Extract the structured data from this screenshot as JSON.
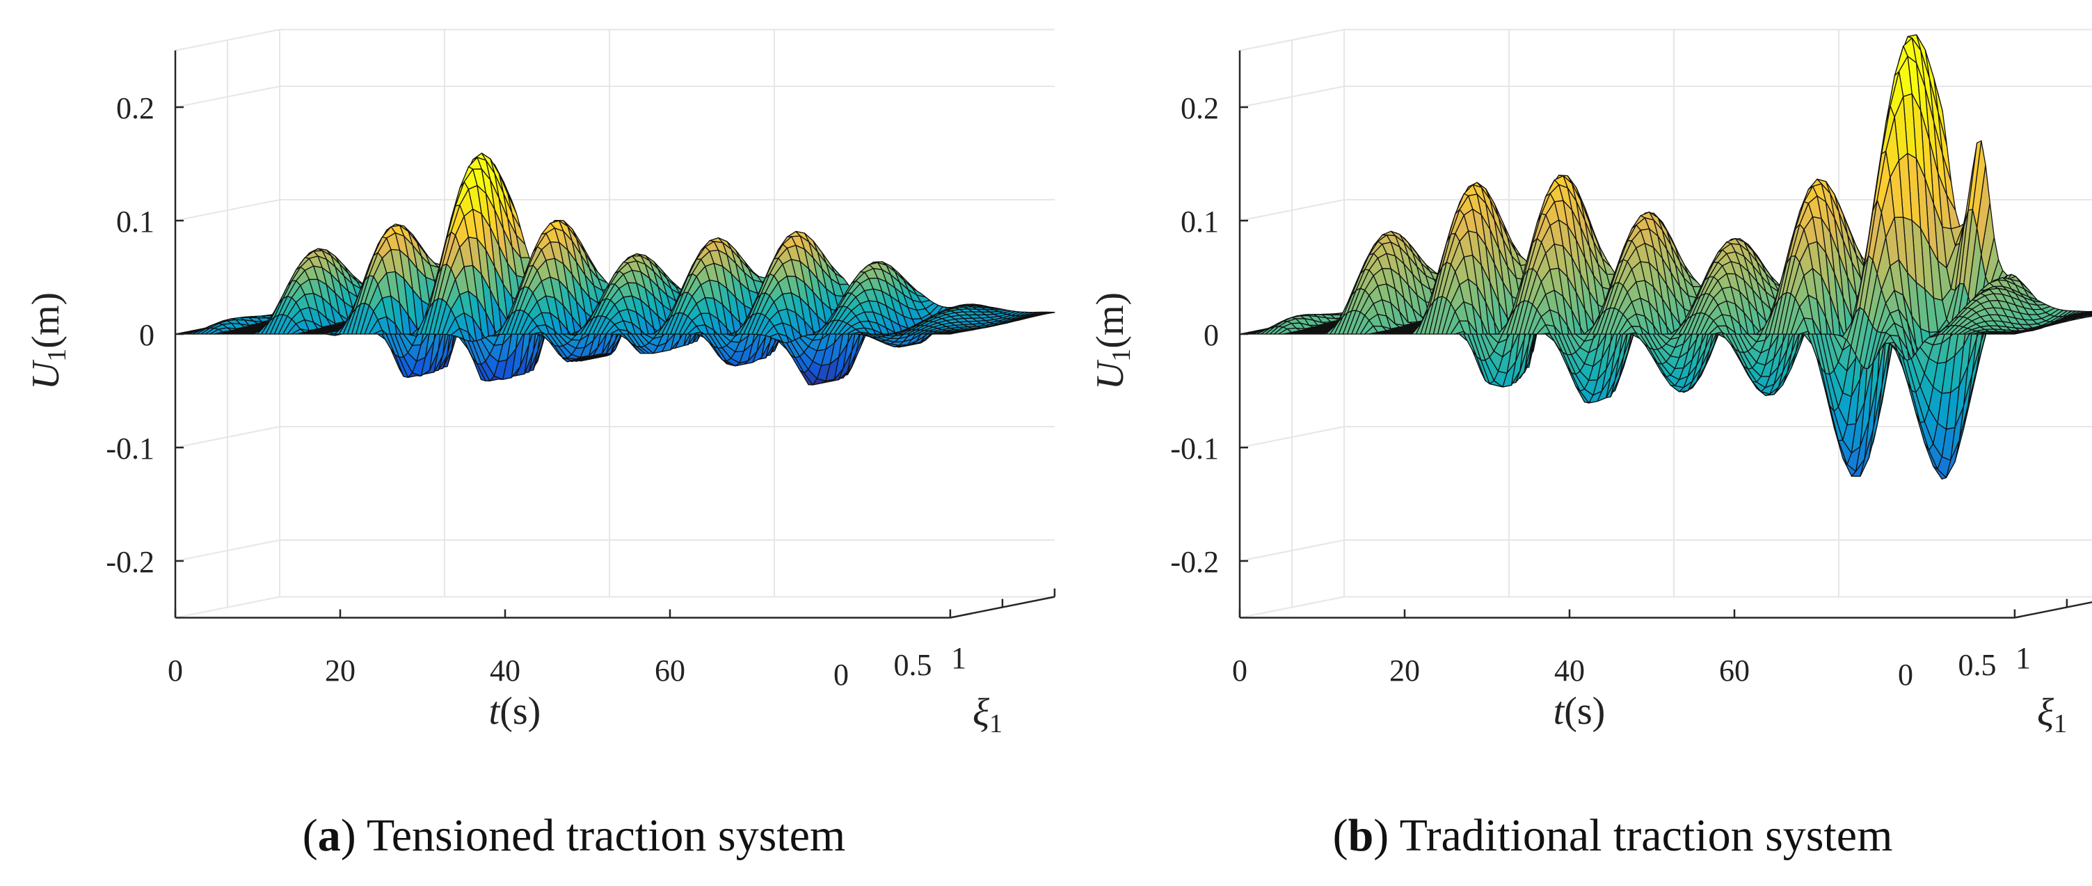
{
  "chart_data": [
    {
      "type": "surface",
      "panel_label": "a",
      "caption": "Tensioned traction system",
      "xlabel_var": "t",
      "xlabel_unit": "(s)",
      "ylabel_var": "ξ",
      "ylabel_sub": "1",
      "zlabel_var": "U",
      "zlabel_sub": "1",
      "zlabel_unit": "(m)",
      "xlim": [
        0,
        94
      ],
      "ylim": [
        0,
        1
      ],
      "zlim": [
        -0.25,
        0.25
      ],
      "x_ticks": [
        "0",
        "20",
        "40",
        "60"
      ],
      "x_tick_values": [
        0,
        20,
        40,
        60
      ],
      "y_ticks": [
        "0",
        "0.5",
        "1"
      ],
      "y_tick_values": [
        0,
        0.5,
        1
      ],
      "z_ticks": [
        "0.2",
        "0.1",
        "0",
        "-0.1",
        "-0.2"
      ],
      "z_tick_values": [
        0.2,
        0.1,
        0,
        -0.1,
        -0.2
      ],
      "grid": true,
      "colormap": "parula",
      "color_range": [
        -0.05,
        0.12
      ],
      "shape": {
        "t_samples": 180,
        "xi_samples": 12,
        "freq": 0.65,
        "amplitude_envelope": [
          [
            0,
            0.0
          ],
          [
            6,
            0.045
          ],
          [
            14,
            0.06
          ],
          [
            20,
            0.07
          ],
          [
            24,
            0.115
          ],
          [
            30,
            0.11
          ],
          [
            38,
            0.08
          ],
          [
            48,
            0.05
          ],
          [
            56,
            0.06
          ],
          [
            68,
            0.065
          ],
          [
            78,
            0.045
          ],
          [
            86,
            0.012
          ],
          [
            94,
            0.002
          ]
        ],
        "positive_bias": [
          [
            0,
            0.5
          ],
          [
            20,
            0.35
          ],
          [
            28,
            0.45
          ],
          [
            38,
            0.35
          ],
          [
            94,
            0.3
          ]
        ],
        "negative_floor": [
          [
            0,
            0.0
          ],
          [
            18,
            0.0
          ],
          [
            22,
            -0.04
          ],
          [
            38,
            -0.045
          ],
          [
            48,
            -0.02
          ],
          [
            58,
            -0.02
          ],
          [
            74,
            -0.05
          ],
          [
            82,
            -0.02
          ],
          [
            94,
            0.0
          ]
        ],
        "positive_peaks": [
          {
            "t": 22.5,
            "z": 0.1
          },
          {
            "t": 25.5,
            "z": 0.105
          },
          {
            "t": 28,
            "z": 0.085
          },
          {
            "t": 60,
            "z": 0.045
          },
          {
            "t": 68,
            "z": 0.04
          }
        ],
        "negative_peaks": [
          {
            "t": 36,
            "z": -0.042
          },
          {
            "t": 74,
            "z": -0.05
          }
        ]
      }
    },
    {
      "type": "surface",
      "panel_label": "b",
      "caption": "Traditional traction system",
      "xlabel_var": "t",
      "xlabel_unit": "(s)",
      "ylabel_var": "ξ",
      "ylabel_sub": "1",
      "zlabel_var": "U",
      "zlabel_sub": "1",
      "zlabel_unit": "(m)",
      "xlim": [
        0,
        94
      ],
      "ylim": [
        0,
        1
      ],
      "zlim": [
        -0.25,
        0.25
      ],
      "x_ticks": [
        "0",
        "20",
        "40",
        "60"
      ],
      "x_tick_values": [
        0,
        20,
        40,
        60
      ],
      "y_ticks": [
        "0",
        "0.5",
        "1"
      ],
      "y_tick_values": [
        0,
        0.5,
        1
      ],
      "z_ticks": [
        "0.2",
        "0.1",
        "0",
        "-0.1",
        "-0.2"
      ],
      "z_tick_values": [
        0.2,
        0.1,
        0,
        -0.1,
        -0.2
      ],
      "grid": true,
      "colormap": "parula",
      "color_range": [
        -0.2,
        0.21
      ],
      "shape": {
        "t_samples": 180,
        "xi_samples": 12,
        "freq": 0.6,
        "amplitude_envelope": [
          [
            0,
            0.0
          ],
          [
            6,
            0.05
          ],
          [
            14,
            0.07
          ],
          [
            20,
            0.09
          ],
          [
            26,
            0.13
          ],
          [
            34,
            0.1
          ],
          [
            44,
            0.08
          ],
          [
            54,
            0.06
          ],
          [
            62,
            0.09
          ],
          [
            68,
            0.16
          ],
          [
            74,
            0.2
          ],
          [
            78,
            0.14
          ],
          [
            84,
            0.03
          ],
          [
            90,
            0.005
          ],
          [
            94,
            0.002
          ]
        ],
        "positive_bias": [
          [
            0,
            0.6
          ],
          [
            20,
            0.45
          ],
          [
            40,
            0.3
          ],
          [
            62,
            0.35
          ],
          [
            94,
            0.3
          ]
        ],
        "negative_floor": [
          [
            0,
            0.0
          ],
          [
            20,
            0.0
          ],
          [
            28,
            -0.05
          ],
          [
            40,
            -0.07
          ],
          [
            52,
            -0.06
          ],
          [
            62,
            -0.08
          ],
          [
            72,
            -0.17
          ],
          [
            76,
            -0.2
          ],
          [
            82,
            -0.12
          ],
          [
            88,
            -0.02
          ],
          [
            94,
            0.0
          ]
        ],
        "positive_peaks": [
          {
            "t": 27,
            "z": 0.13
          },
          {
            "t": 72,
            "z": 0.195
          },
          {
            "t": 77,
            "z": 0.21
          }
        ],
        "negative_peaks": [
          {
            "t": 76,
            "z": -0.2
          },
          {
            "t": 81,
            "z": -0.15
          }
        ]
      }
    }
  ]
}
